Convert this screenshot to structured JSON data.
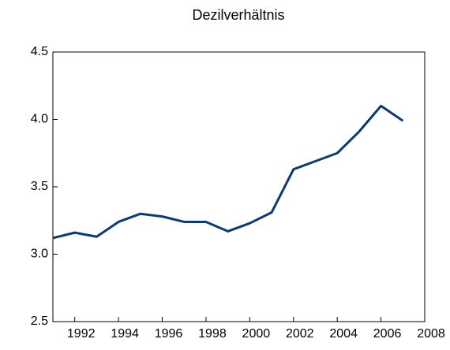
{
  "chart_data": {
    "type": "line",
    "title": "Dezilverhältnis",
    "x": [
      1991,
      1992,
      1993,
      1994,
      1995,
      1996,
      1997,
      1998,
      1999,
      2000,
      2001,
      2002,
      2003,
      2004,
      2005,
      2006,
      2007
    ],
    "series": [
      {
        "color": "#0b3a78",
        "values": [
          3.12,
          3.16,
          3.13,
          3.24,
          3.3,
          3.28,
          3.24,
          3.24,
          3.17,
          3.23,
          3.31,
          3.63,
          3.69,
          3.75,
          3.91,
          4.1,
          3.99
        ]
      }
    ],
    "xlim": [
      1991,
      2008
    ],
    "xticks": [
      1992,
      1994,
      1996,
      1998,
      2000,
      2002,
      2004,
      2006,
      2008
    ],
    "ylim": [
      2.5,
      4.5
    ],
    "yticks": [
      2.5,
      {
        "value": 3.0,
        "label": "3.0"
      },
      3.5,
      {
        "value": 4.0,
        "label": "4.0"
      },
      4.5
    ],
    "grid": false
  }
}
